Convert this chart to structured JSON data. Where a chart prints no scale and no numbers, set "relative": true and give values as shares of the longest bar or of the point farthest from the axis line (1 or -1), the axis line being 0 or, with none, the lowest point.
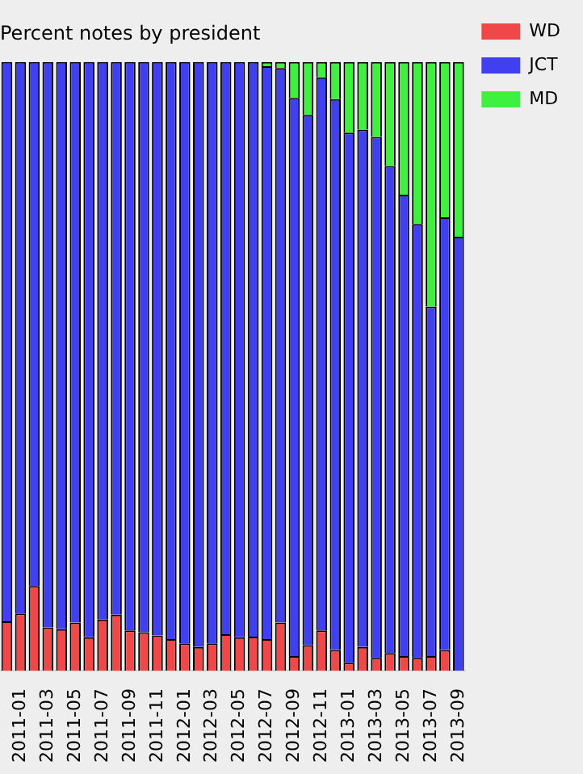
{
  "chart_data": {
    "type": "bar",
    "title": "Percent notes by president",
    "stacked": true,
    "relative": true,
    "legend": "top right",
    "grid": false,
    "categories": [
      null,
      "2011-01",
      null,
      "2011-03",
      null,
      "2011-05",
      null,
      "2011-07",
      null,
      "2011-09",
      null,
      "2011-11",
      null,
      "2012-01",
      null,
      "2012-03",
      null,
      "2012-05",
      null,
      "2012-07",
      null,
      "2012-09",
      null,
      "2012-11",
      null,
      "2013-01",
      null,
      "2013-03",
      null,
      "2013-05",
      null,
      "2013-07",
      null,
      "2013-09"
    ],
    "series": [
      {
        "name": "WD",
        "color": "#f04848",
        "values": [
          0.081,
          0.094,
          0.139,
          0.071,
          0.068,
          0.079,
          0.055,
          0.084,
          0.092,
          0.066,
          0.063,
          0.058,
          0.052,
          0.045,
          0.039,
          0.045,
          0.06,
          0.055,
          0.056,
          0.052,
          0.079,
          0.024,
          0.042,
          0.066,
          0.034,
          0.013,
          0.039,
          0.021,
          0.029,
          0.024,
          0.021,
          0.024,
          0.034,
          0
        ]
      },
      {
        "name": "JCT",
        "color": "#4040f0",
        "values": [
          0.919,
          0.906,
          0.861,
          0.929,
          0.932,
          0.921,
          0.945,
          0.916,
          0.908,
          0.934,
          0.937,
          0.942,
          0.948,
          0.955,
          0.961,
          0.955,
          0.94,
          0.945,
          0.944,
          0.941,
          0.911,
          0.917,
          0.871,
          0.909,
          0.905,
          0.871,
          0.85,
          0.856,
          0.8,
          0.758,
          0.713,
          0.574,
          0.711,
          0.713
        ]
      },
      {
        "name": "MD",
        "color": "#40f040",
        "values": [
          0,
          0,
          0,
          0,
          0,
          0,
          0,
          0,
          0,
          0,
          0,
          0,
          0,
          0,
          0,
          0,
          0,
          0,
          0,
          0.007,
          0.01,
          0.059,
          0.087,
          0.025,
          0.061,
          0.116,
          0.111,
          0.123,
          0.171,
          0.218,
          0.266,
          0.402,
          0.255,
          0.287
        ]
      }
    ]
  }
}
